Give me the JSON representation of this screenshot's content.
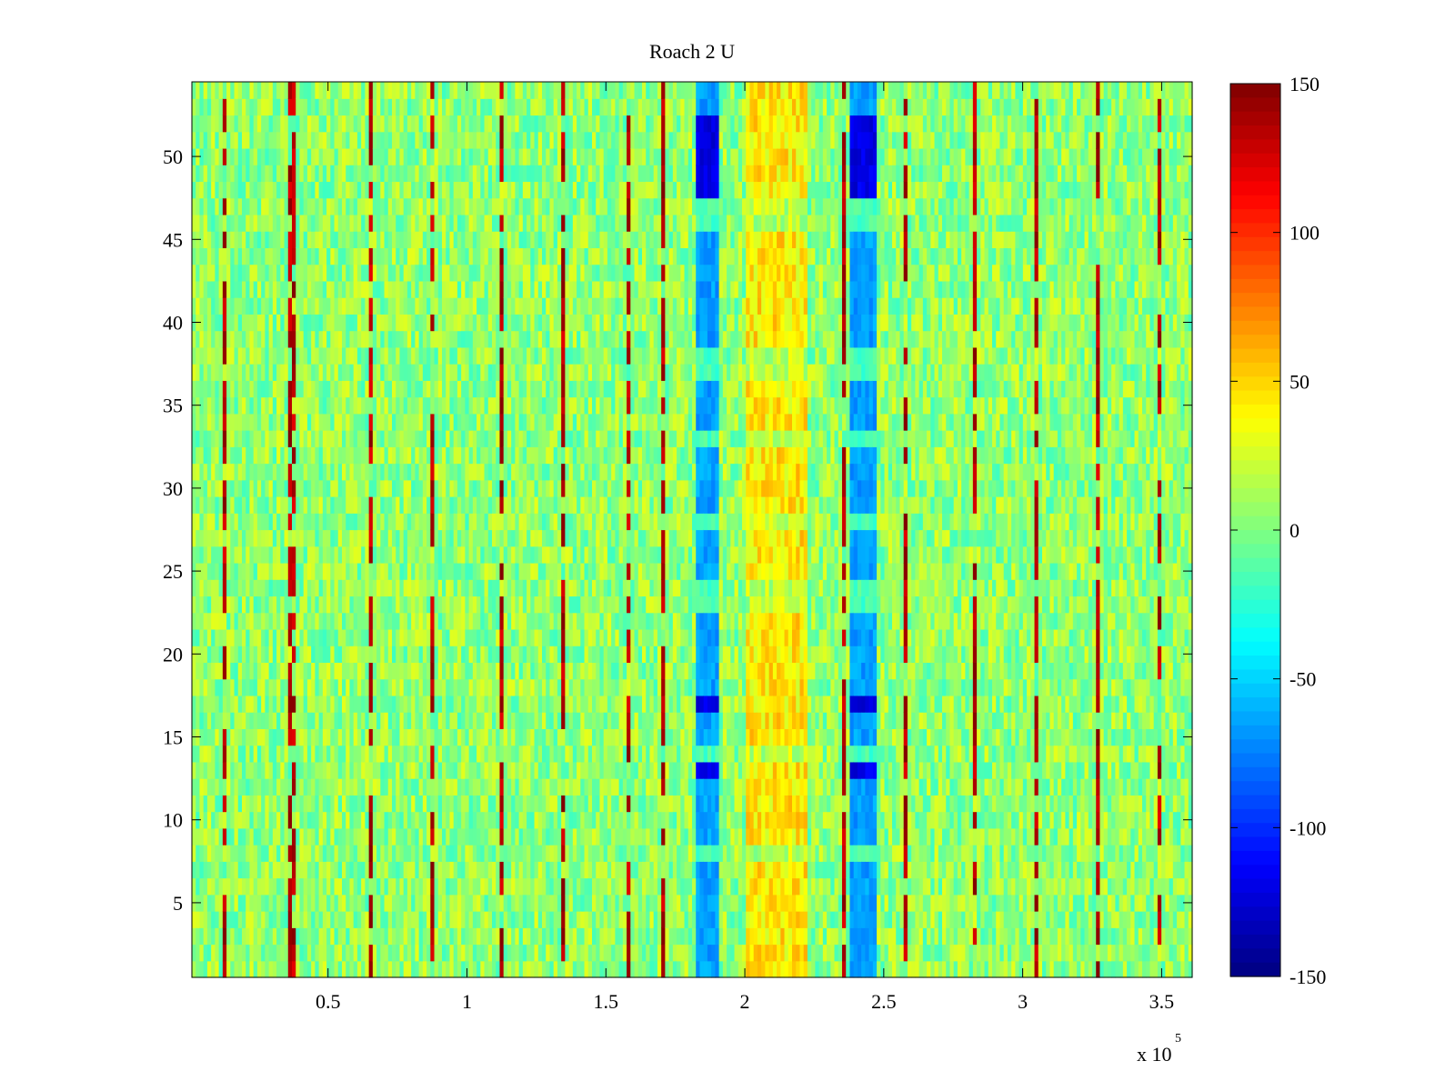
{
  "chart_data": {
    "type": "heatmap",
    "title": "Roach 2 U",
    "xlabel": "",
    "ylabel": "",
    "x_multiplier_label": "x 10",
    "x_multiplier_exponent": "5",
    "xlim": [
      0.01,
      3.61
    ],
    "ylim": [
      0.5,
      54.5
    ],
    "x_ticks": [
      0.5,
      1,
      1.5,
      2,
      2.5,
      3,
      3.5
    ],
    "x_tick_labels": [
      "0.5",
      "1",
      "1.5",
      "2",
      "2.5",
      "3",
      "3.5"
    ],
    "y_ticks": [
      5,
      10,
      15,
      20,
      25,
      30,
      35,
      40,
      45,
      50
    ],
    "y_tick_labels": [
      "5",
      "10",
      "15",
      "20",
      "25",
      "30",
      "35",
      "40",
      "45",
      "50"
    ],
    "rows": 54,
    "colormap": "jet",
    "clim": [
      -150,
      150
    ],
    "colorbar_ticks": [
      150,
      100,
      50,
      0,
      -50,
      -100,
      -150
    ],
    "colorbar_tick_labels": [
      "150",
      "100",
      "50",
      "0",
      "-50",
      "-100",
      "-150"
    ],
    "grid": false,
    "features": [
      {
        "kind": "negative-band",
        "x_range": [
          1.82,
          1.91
        ],
        "value": -120
      },
      {
        "kind": "negative-band",
        "x_range": [
          2.38,
          2.47
        ],
        "value": -120
      },
      {
        "kind": "positive-band",
        "x_range": [
          2.01,
          2.22
        ],
        "value": 35
      }
    ],
    "spikes_x": [
      0.13,
      0.37,
      0.65,
      0.88,
      1.12,
      1.35,
      1.58,
      1.71,
      2.36,
      2.58,
      2.83,
      3.05,
      3.27,
      3.49
    ]
  }
}
